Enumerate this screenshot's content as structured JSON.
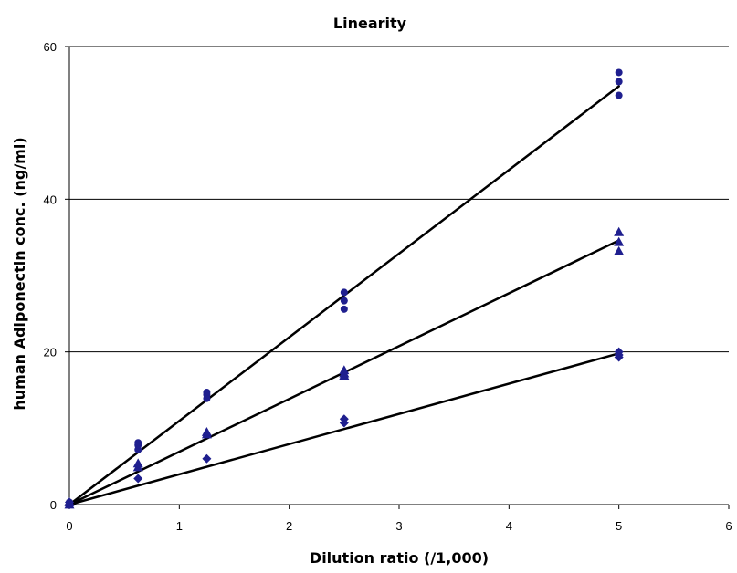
{
  "chart_data": {
    "type": "scatter",
    "title": "Linearity",
    "xlabel": "Dilution ratio (/1,000)",
    "ylabel": "human Adiponectin conc. (ng/ml)",
    "xlim": [
      0,
      6
    ],
    "ylim": [
      0,
      60
    ],
    "xticks": [
      "0",
      "1",
      "2",
      "3",
      "4",
      "5",
      "6"
    ],
    "yticks": [
      "0",
      "20",
      "40",
      "60"
    ],
    "grid": "horizontal",
    "legend": "none",
    "marker_color": "#1f1f8f",
    "line_color": "#000000",
    "series": [
      {
        "marker": "circle",
        "points": [
          [
            0,
            0
          ],
          [
            0,
            0.3
          ],
          [
            0.625,
            7.2
          ],
          [
            0.625,
            7.8
          ],
          [
            0.625,
            8.1
          ],
          [
            1.25,
            13.9
          ],
          [
            1.25,
            14.4
          ],
          [
            1.25,
            14.7
          ],
          [
            2.5,
            25.6
          ],
          [
            2.5,
            26.7
          ],
          [
            2.5,
            27.8
          ],
          [
            5,
            53.6
          ],
          [
            5,
            55.4
          ],
          [
            5,
            56.6
          ]
        ],
        "fit": [
          [
            0,
            0
          ],
          [
            5,
            54.8
          ]
        ]
      },
      {
        "marker": "triangle",
        "points": [
          [
            0,
            0
          ],
          [
            0,
            0.3
          ],
          [
            0.625,
            4.9
          ],
          [
            0.625,
            5.4
          ],
          [
            1.25,
            9.2
          ],
          [
            1.25,
            9.5
          ],
          [
            2.5,
            16.9
          ],
          [
            2.5,
            17.2
          ],
          [
            2.5,
            17.6
          ],
          [
            5,
            33.2
          ],
          [
            5,
            34.4
          ],
          [
            5,
            35.7
          ]
        ],
        "fit": [
          [
            0,
            0
          ],
          [
            5,
            34.6
          ]
        ]
      },
      {
        "marker": "diamond",
        "points": [
          [
            0,
            0
          ],
          [
            0,
            0.3
          ],
          [
            0.625,
            3.4
          ],
          [
            1.25,
            6.0
          ],
          [
            2.5,
            10.7
          ],
          [
            2.5,
            11.2
          ],
          [
            5,
            19.3
          ],
          [
            5,
            19.6
          ],
          [
            5,
            20.0
          ]
        ],
        "fit": [
          [
            0,
            0
          ],
          [
            5,
            19.8
          ]
        ]
      }
    ]
  }
}
